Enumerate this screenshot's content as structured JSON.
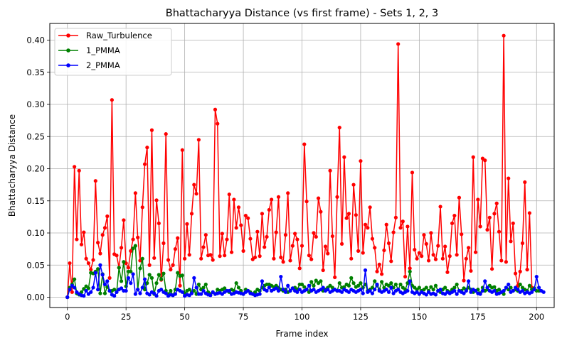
{
  "chart_data": {
    "type": "line",
    "title": "Bhattacharyya Distance (vs first frame) - Sets 1, 2, 3",
    "xlabel": "Frame index",
    "ylabel": "Bhattacharyya Distance",
    "xlim": [
      -7.5,
      207.5
    ],
    "ylim": [
      -0.016,
      0.426
    ],
    "xticks": [
      0,
      25,
      50,
      75,
      100,
      125,
      150,
      175,
      200
    ],
    "yticks": [
      0.0,
      0.05,
      0.1,
      0.15,
      0.2,
      0.25,
      0.3,
      0.35,
      0.4
    ],
    "xtick_labels": [
      "0",
      "25",
      "50",
      "75",
      "100",
      "125",
      "150",
      "175",
      "200"
    ],
    "ytick_labels": [
      "0.00",
      "0.05",
      "0.10",
      "0.15",
      "0.20",
      "0.25",
      "0.30",
      "0.35",
      "0.40"
    ],
    "grid": true,
    "legend_position": "top-left",
    "markers": "circle",
    "x_start": 0,
    "series": [
      {
        "name": "Raw_Turbulence",
        "color": "#ff0000",
        "values": [
          0.0,
          0.053,
          0.008,
          0.203,
          0.09,
          0.197,
          0.082,
          0.101,
          0.06,
          0.053,
          0.043,
          0.058,
          0.181,
          0.085,
          0.068,
          0.097,
          0.108,
          0.126,
          0.03,
          0.307,
          0.067,
          0.065,
          0.046,
          0.077,
          0.12,
          0.053,
          0.046,
          0.072,
          0.09,
          0.162,
          0.093,
          0.057,
          0.14,
          0.207,
          0.233,
          0.05,
          0.26,
          0.061,
          0.151,
          0.115,
          0.027,
          0.084,
          0.254,
          0.058,
          0.043,
          0.05,
          0.075,
          0.092,
          0.018,
          0.229,
          0.06,
          0.114,
          0.066,
          0.13,
          0.175,
          0.161,
          0.245,
          0.06,
          0.078,
          0.097,
          0.065,
          0.066,
          0.058,
          0.292,
          0.27,
          0.064,
          0.099,
          0.065,
          0.09,
          0.16,
          0.07,
          0.152,
          0.108,
          0.14,
          0.112,
          0.072,
          0.127,
          0.123,
          0.091,
          0.059,
          0.062,
          0.102,
          0.064,
          0.13,
          0.078,
          0.094,
          0.136,
          0.152,
          0.06,
          0.101,
          0.156,
          0.062,
          0.055,
          0.097,
          0.162,
          0.057,
          0.08,
          0.099,
          0.09,
          0.045,
          0.08,
          0.238,
          0.149,
          0.065,
          0.059,
          0.1,
          0.094,
          0.154,
          0.133,
          0.042,
          0.079,
          0.068,
          0.197,
          0.095,
          0.031,
          0.156,
          0.264,
          0.083,
          0.218,
          0.123,
          0.13,
          0.06,
          0.175,
          0.128,
          0.072,
          0.212,
          0.069,
          0.113,
          0.108,
          0.14,
          0.091,
          0.077,
          0.04,
          0.051,
          0.036,
          0.073,
          0.113,
          0.084,
          0.056,
          0.101,
          0.124,
          0.394,
          0.108,
          0.118,
          0.032,
          0.11,
          0.045,
          0.194,
          0.074,
          0.06,
          0.069,
          0.064,
          0.097,
          0.083,
          0.057,
          0.1,
          0.066,
          0.059,
          0.08,
          0.141,
          0.06,
          0.079,
          0.039,
          0.064,
          0.115,
          0.127,
          0.066,
          0.155,
          0.098,
          0.026,
          0.06,
          0.077,
          0.041,
          0.218,
          0.07,
          0.152,
          0.11,
          0.216,
          0.213,
          0.105,
          0.124,
          0.044,
          0.13,
          0.146,
          0.102,
          0.057,
          0.407,
          0.055,
          0.185,
          0.087,
          0.115,
          0.037,
          0.018,
          0.04,
          0.084,
          0.179,
          0.043,
          0.131,
          0.015
        ]
      },
      {
        "name": "1_PMMA",
        "color": "#008000",
        "values": [
          0.0,
          0.015,
          0.02,
          0.028,
          0.006,
          0.004,
          0.008,
          0.013,
          0.017,
          0.014,
          0.038,
          0.037,
          0.04,
          0.044,
          0.006,
          0.036,
          0.006,
          0.016,
          0.01,
          0.01,
          0.012,
          0.008,
          0.046,
          0.025,
          0.055,
          0.017,
          0.04,
          0.04,
          0.076,
          0.08,
          0.012,
          0.045,
          0.06,
          0.012,
          0.022,
          0.035,
          0.03,
          0.005,
          0.022,
          0.035,
          0.028,
          0.037,
          0.01,
          0.005,
          0.01,
          0.003,
          0.012,
          0.038,
          0.033,
          0.034,
          0.006,
          0.01,
          0.012,
          0.008,
          0.01,
          0.005,
          0.02,
          0.012,
          0.015,
          0.02,
          0.008,
          0.005,
          0.008,
          0.005,
          0.012,
          0.01,
          0.012,
          0.014,
          0.01,
          0.008,
          0.012,
          0.01,
          0.022,
          0.015,
          0.01,
          0.005,
          0.012,
          0.01,
          0.008,
          0.005,
          0.008,
          0.012,
          0.01,
          0.015,
          0.018,
          0.02,
          0.02,
          0.018,
          0.016,
          0.018,
          0.015,
          0.012,
          0.01,
          0.012,
          0.008,
          0.01,
          0.014,
          0.015,
          0.012,
          0.02,
          0.02,
          0.016,
          0.012,
          0.008,
          0.024,
          0.018,
          0.026,
          0.022,
          0.025,
          0.01,
          0.012,
          0.015,
          0.018,
          0.015,
          0.012,
          0.01,
          0.022,
          0.015,
          0.016,
          0.02,
          0.018,
          0.03,
          0.022,
          0.016,
          0.018,
          0.022,
          0.015,
          0.02,
          0.01,
          0.012,
          0.015,
          0.025,
          0.018,
          0.012,
          0.024,
          0.015,
          0.02,
          0.018,
          0.022,
          0.015,
          0.02,
          0.012,
          0.02,
          0.015,
          0.012,
          0.022,
          0.04,
          0.018,
          0.015,
          0.012,
          0.015,
          0.01,
          0.012,
          0.015,
          0.01,
          0.016,
          0.012,
          0.018,
          0.01,
          0.008,
          0.012,
          0.015,
          0.01,
          0.008,
          0.012,
          0.015,
          0.02,
          0.01,
          0.01,
          0.014,
          0.012,
          0.015,
          0.012,
          0.008,
          0.01,
          0.012,
          0.006,
          0.015,
          0.01,
          0.012,
          0.018,
          0.015,
          0.016,
          0.01,
          0.012,
          0.008,
          0.005,
          0.015,
          0.012,
          0.015,
          0.01,
          0.012,
          0.01,
          0.02,
          0.015,
          0.012,
          0.01,
          0.018,
          0.012,
          0.014,
          0.01,
          0.01
        ]
      },
      {
        "name": "2_PMMA",
        "color": "#0000ff",
        "values": [
          0.0,
          0.012,
          0.018,
          0.015,
          0.008,
          0.005,
          0.003,
          0.002,
          0.01,
          0.005,
          0.008,
          0.015,
          0.038,
          0.012,
          0.05,
          0.035,
          0.02,
          0.025,
          0.01,
          0.004,
          0.002,
          0.008,
          0.012,
          0.014,
          0.01,
          0.01,
          0.03,
          0.022,
          0.036,
          0.005,
          0.012,
          0.006,
          0.015,
          0.028,
          0.006,
          0.004,
          0.008,
          0.006,
          0.002,
          0.01,
          0.012,
          0.008,
          0.006,
          0.002,
          0.004,
          0.003,
          0.005,
          0.012,
          0.01,
          0.008,
          0.002,
          0.004,
          0.003,
          0.006,
          0.03,
          0.015,
          0.005,
          0.005,
          0.01,
          0.006,
          0.004,
          0.003,
          0.008,
          0.005,
          0.006,
          0.007,
          0.005,
          0.008,
          0.01,
          0.01,
          0.005,
          0.006,
          0.008,
          0.007,
          0.006,
          0.005,
          0.008,
          0.01,
          0.006,
          0.005,
          0.003,
          0.004,
          0.005,
          0.025,
          0.012,
          0.01,
          0.015,
          0.01,
          0.012,
          0.014,
          0.01,
          0.032,
          0.012,
          0.008,
          0.018,
          0.01,
          0.014,
          0.01,
          0.008,
          0.012,
          0.008,
          0.01,
          0.012,
          0.018,
          0.01,
          0.012,
          0.008,
          0.01,
          0.012,
          0.015,
          0.01,
          0.012,
          0.008,
          0.01,
          0.012,
          0.01,
          0.01,
          0.008,
          0.012,
          0.01,
          0.008,
          0.012,
          0.01,
          0.008,
          0.01,
          0.012,
          0.006,
          0.042,
          0.008,
          0.01,
          0.006,
          0.012,
          0.02,
          0.01,
          0.008,
          0.01,
          0.012,
          0.008,
          0.015,
          0.006,
          0.01,
          0.012,
          0.008,
          0.006,
          0.008,
          0.01,
          0.025,
          0.008,
          0.006,
          0.008,
          0.005,
          0.008,
          0.006,
          0.004,
          0.008,
          0.005,
          0.006,
          0.004,
          0.01,
          0.012,
          0.006,
          0.005,
          0.008,
          0.006,
          0.008,
          0.01,
          0.005,
          0.01,
          0.008,
          0.006,
          0.01,
          0.025,
          0.008,
          0.012,
          0.01,
          0.006,
          0.005,
          0.01,
          0.025,
          0.015,
          0.01,
          0.008,
          0.01,
          0.005,
          0.006,
          0.008,
          0.01,
          0.015,
          0.02,
          0.008,
          0.01,
          0.015,
          0.012,
          0.008,
          0.01,
          0.006,
          0.008,
          0.006,
          0.008,
          0.012,
          0.032,
          0.015,
          0.01,
          0.008
        ]
      }
    ]
  }
}
